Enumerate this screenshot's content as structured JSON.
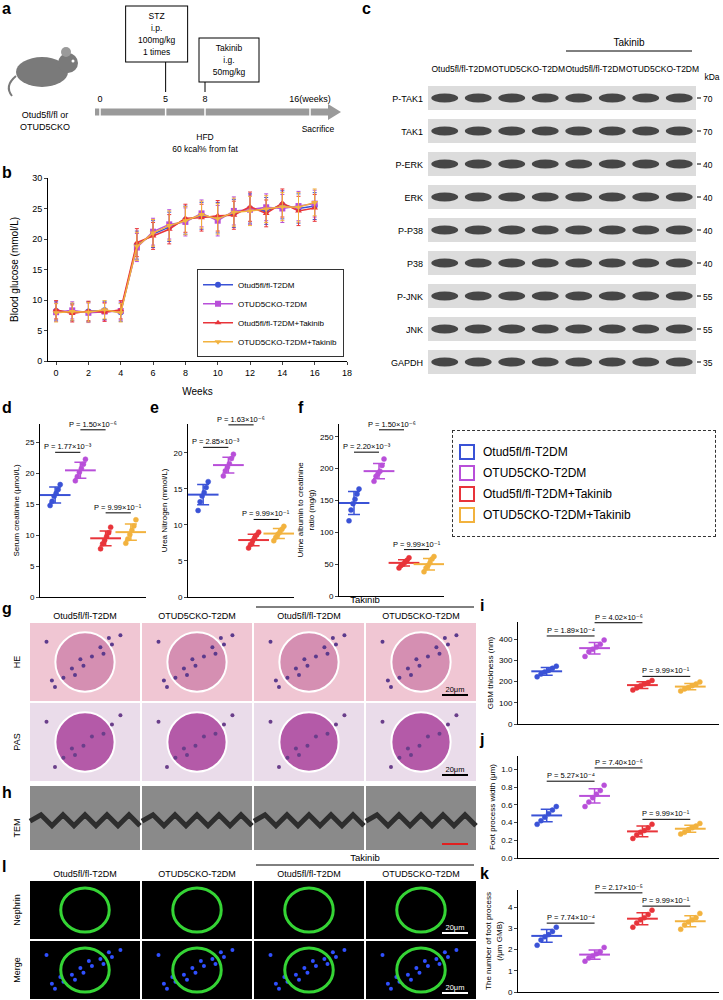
{
  "chart_data": [
    {
      "panel": "b",
      "type": "line",
      "x_label": "Weeks",
      "y_label": "Blood glucose (mmol/L)",
      "x": [
        0,
        1,
        2,
        3,
        4,
        5,
        6,
        7,
        8,
        9,
        10,
        11,
        12,
        13,
        14,
        15,
        16
      ],
      "xlim": [
        -0.5,
        18
      ],
      "xticks": [
        0,
        2,
        4,
        6,
        8,
        10,
        12,
        14,
        16,
        18
      ],
      "ylim": [
        0,
        30
      ],
      "yticks": [
        0,
        5,
        10,
        15,
        20,
        25,
        30
      ],
      "legend": "lower right",
      "series": [
        {
          "name": "Otud5fl/fl-T2DM",
          "color": "#3a52d6",
          "marker": "circle",
          "values": [
            8.2,
            8.0,
            8.1,
            8.3,
            8.0,
            19.0,
            20.8,
            22.0,
            23.1,
            23.8,
            23.5,
            24.2,
            25.0,
            24.6,
            25.6,
            25.0,
            25.4
          ],
          "errors": [
            1.5,
            1.4,
            1.6,
            1.5,
            1.5,
            2.3,
            2.2,
            2.4,
            2.3,
            2.2,
            2.5,
            2.3,
            2.4,
            2.2,
            2.3,
            2.4,
            2.2
          ]
        },
        {
          "name": "OTUD5CKO-T2DM",
          "color": "#b84fd9",
          "marker": "square",
          "values": [
            8.0,
            8.3,
            7.9,
            8.1,
            8.2,
            18.6,
            21.2,
            22.4,
            22.8,
            24.2,
            23.0,
            24.6,
            24.8,
            25.2,
            25.0,
            25.4,
            25.8
          ],
          "errors": [
            1.5,
            1.4,
            1.6,
            1.5,
            1.5,
            2.3,
            2.2,
            2.4,
            2.3,
            2.2,
            2.5,
            2.3,
            2.4,
            2.2,
            2.3,
            2.4,
            2.2
          ]
        },
        {
          "name": "Otud5fl/fl-T2DM+Takinib",
          "color": "#e8343a",
          "marker": "triangle-up",
          "values": [
            8.4,
            7.8,
            8.2,
            8.0,
            8.4,
            19.4,
            20.5,
            21.6,
            23.4,
            23.5,
            23.8,
            23.9,
            25.3,
            24.2,
            25.9,
            24.6,
            25.1
          ],
          "errors": [
            1.5,
            1.4,
            1.6,
            1.5,
            1.5,
            2.3,
            2.2,
            2.4,
            2.3,
            2.2,
            2.5,
            2.3,
            2.4,
            2.2,
            2.3,
            2.4,
            2.2
          ]
        },
        {
          "name": "OTUD5CKO-T2DM+Takinib",
          "color": "#f2b23e",
          "marker": "triangle-down",
          "values": [
            7.9,
            8.1,
            8.0,
            8.4,
            7.9,
            18.8,
            21.0,
            22.2,
            23.0,
            24.0,
            23.3,
            24.4,
            24.6,
            24.9,
            25.3,
            25.2,
            26.0
          ],
          "errors": [
            1.5,
            1.4,
            1.6,
            1.5,
            1.5,
            2.3,
            2.2,
            2.4,
            2.3,
            2.2,
            2.5,
            2.3,
            2.4,
            2.2,
            2.3,
            2.4,
            2.2
          ]
        }
      ]
    },
    {
      "panel": "d",
      "type": "dotplot",
      "y_label": [
        "Serum creatinine (μmol/L)"
      ],
      "ylim": [
        0,
        28
      ],
      "yticks": [
        0,
        5,
        10,
        15,
        20,
        25
      ],
      "tick_labels": "y",
      "series": [
        {
          "name": "Otud5fl/fl-T2DM",
          "color": "#3a52d6",
          "values": [
            14.8,
            15.5,
            16.3,
            16.8,
            17.4,
            18.2
          ],
          "mean": 16.5,
          "sd": 1.3
        },
        {
          "name": "OTUD5CKO-T2DM",
          "color": "#b84fd9",
          "values": [
            18.8,
            19.5,
            20.2,
            20.8,
            21.5,
            22.3
          ],
          "mean": 20.5,
          "sd": 1.3
        },
        {
          "name": "Otud5fl/fl-T2DM+Takinib",
          "color": "#e8343a",
          "values": [
            7.8,
            8.6,
            9.2,
            9.8,
            10.4,
            11.3
          ],
          "mean": 9.5,
          "sd": 1.2
        },
        {
          "name": "OTUD5CKO-T2DM+Takinib",
          "color": "#f2b23e",
          "values": [
            8.7,
            9.4,
            10.1,
            10.8,
            11.5,
            12.5
          ],
          "mean": 10.5,
          "sd": 1.3
        }
      ],
      "comparisons": [
        {
          "groups": [
            0,
            1
          ],
          "label": "P = 1.77×10⁻³"
        },
        {
          "groups": [
            2,
            3
          ],
          "label": "P = 9.99×10⁻¹"
        },
        {
          "groups": [
            1,
            2
          ],
          "label": "P = 1.50×10⁻⁶"
        }
      ]
    },
    {
      "panel": "e",
      "type": "dotplot",
      "y_label": [
        "Urea Nitrogen (mmol/L)"
      ],
      "ylim": [
        0,
        24
      ],
      "yticks": [
        0,
        5,
        10,
        15,
        20
      ],
      "tick_labels": "y",
      "series": [
        {
          "name": "Otud5fl/fl-T2DM",
          "color": "#3a52d6",
          "values": [
            12.0,
            13.2,
            14.0,
            14.5,
            15.2,
            16.0
          ],
          "mean": 14.2,
          "sd": 1.4
        },
        {
          "name": "OTUD5CKO-T2DM",
          "color": "#b84fd9",
          "values": [
            16.8,
            17.5,
            18.0,
            18.5,
            19.2,
            19.8
          ],
          "mean": 18.3,
          "sd": 1.1
        },
        {
          "name": "Otud5fl/fl-T2DM+Takinib",
          "color": "#e8343a",
          "values": [
            6.8,
            7.3,
            7.8,
            8.2,
            8.6,
            9.0
          ],
          "mean": 7.9,
          "sd": 0.8
        },
        {
          "name": "OTUD5CKO-T2DM+Takinib",
          "color": "#f2b23e",
          "values": [
            7.8,
            8.3,
            8.7,
            9.0,
            9.4,
            9.8
          ],
          "mean": 8.8,
          "sd": 0.7
        }
      ],
      "comparisons": [
        {
          "groups": [
            0,
            1
          ],
          "label": "P = 2.85×10⁻³"
        },
        {
          "groups": [
            2,
            3
          ],
          "label": "P = 9.99×10⁻¹"
        },
        {
          "groups": [
            1,
            2
          ],
          "label": "P = 1.63×10⁻⁶"
        }
      ]
    },
    {
      "panel": "f",
      "type": "dotplot",
      "y_label": [
        "Urine albumin to creatinine",
        "ratio (mg/g)"
      ],
      "ylim": [
        0,
        270
      ],
      "yticks": [
        0,
        50,
        100,
        150,
        200,
        250
      ],
      "tick_labels": "y",
      "legend": "right",
      "series": [
        {
          "name": "Otud5fl/fl-T2DM",
          "color": "#3a52d6",
          "values": [
            118,
            135,
            145,
            152,
            160,
            168
          ],
          "mean": 146,
          "sd": 18
        },
        {
          "name": "OTUD5CKO-T2DM",
          "color": "#b84fd9",
          "values": [
            180,
            188,
            192,
            196,
            205,
            215
          ],
          "mean": 196,
          "sd": 12
        },
        {
          "name": "Otud5fl/fl-T2DM+Takinib",
          "color": "#e8343a",
          "values": [
            44,
            48,
            50,
            53,
            56,
            60
          ],
          "mean": 52,
          "sd": 5
        },
        {
          "name": "OTUD5CKO-T2DM+Takinib",
          "color": "#f2b23e",
          "values": [
            38,
            44,
            48,
            52,
            58,
            62
          ],
          "mean": 50,
          "sd": 9
        }
      ],
      "comparisons": [
        {
          "groups": [
            0,
            1
          ],
          "label": "P = 2.20×10⁻³"
        },
        {
          "groups": [
            2,
            3
          ],
          "label": "P = 9.99×10⁻¹"
        },
        {
          "groups": [
            1,
            2
          ],
          "label": "P = 1.50×10⁻⁶"
        }
      ]
    },
    {
      "panel": "i",
      "type": "dotplot",
      "y_label": [
        "GBM thickness (nm)"
      ],
      "ylim": [
        0,
        480
      ],
      "yticks": [
        0,
        100,
        200,
        300,
        400
      ],
      "tick_labels": "y",
      "series": [
        {
          "name": "Otud5fl/fl-T2DM",
          "color": "#3a52d6",
          "values": [
            222,
            235,
            245,
            252,
            262,
            272
          ],
          "mean": 248,
          "sd": 18
        },
        {
          "name": "OTUD5CKO-T2DM",
          "color": "#b84fd9",
          "values": [
            318,
            340,
            352,
            362,
            375,
            395
          ],
          "mean": 357,
          "sd": 27
        },
        {
          "name": "Otud5fl/fl-T2DM+Takinib",
          "color": "#e8343a",
          "values": [
            160,
            170,
            180,
            188,
            195,
            205
          ],
          "mean": 183,
          "sd": 16
        },
        {
          "name": "OTUD5CKO-T2DM+Takinib",
          "color": "#f2b23e",
          "values": [
            155,
            165,
            172,
            180,
            188,
            198
          ],
          "mean": 176,
          "sd": 15
        }
      ],
      "comparisons": [
        {
          "groups": [
            0,
            1
          ],
          "label": "P = 1.89×10⁻⁴"
        },
        {
          "groups": [
            2,
            3
          ],
          "label": "P = 9.99×10⁻¹"
        },
        {
          "groups": [
            1,
            2
          ],
          "label": "P = 4.02×10⁻⁶"
        }
      ]
    },
    {
      "panel": "j",
      "type": "dotplot",
      "y_label": [
        "Foot process width (μm)"
      ],
      "ylim": [
        0,
        1.15
      ],
      "yticks": [
        {
          "value": 0,
          "label": "0.0"
        },
        0.2,
        0.4,
        0.6,
        0.8,
        {
          "value": 1,
          "label": "1.0"
        }
      ],
      "tick_labels": "y",
      "series": [
        {
          "name": "Otud5fl/fl-T2DM",
          "color": "#3a52d6",
          "values": [
            0.38,
            0.42,
            0.46,
            0.5,
            0.54,
            0.58
          ],
          "mean": 0.48,
          "sd": 0.07
        },
        {
          "name": "OTUD5CKO-T2DM",
          "color": "#b84fd9",
          "values": [
            0.58,
            0.63,
            0.68,
            0.72,
            0.76,
            0.82
          ],
          "mean": 0.7,
          "sd": 0.08
        },
        {
          "name": "Otud5fl/fl-T2DM+Takinib",
          "color": "#e8343a",
          "values": [
            0.22,
            0.26,
            0.29,
            0.31,
            0.34,
            0.38
          ],
          "mean": 0.3,
          "sd": 0.06
        },
        {
          "name": "OTUD5CKO-T2DM+Takinib",
          "color": "#f2b23e",
          "values": [
            0.27,
            0.29,
            0.32,
            0.34,
            0.36,
            0.39
          ],
          "mean": 0.33,
          "sd": 0.04
        }
      ],
      "comparisons": [
        {
          "groups": [
            0,
            1
          ],
          "label": "P = 5.27×10⁻⁴"
        },
        {
          "groups": [
            2,
            3
          ],
          "label": "P = 9.99×10⁻¹"
        },
        {
          "groups": [
            1,
            2
          ],
          "label": "P = 7.40×10⁻⁶"
        }
      ]
    },
    {
      "panel": "k",
      "type": "dotplot",
      "y_label": [
        "The number of foot process",
        "(/μm GMB)"
      ],
      "ylim": [
        0,
        4.8
      ],
      "yticks": [
        0,
        1,
        2,
        3,
        4
      ],
      "tick_labels": "y",
      "series": [
        {
          "name": "Otud5fl/fl-T2DM",
          "color": "#3a52d6",
          "values": [
            2.2,
            2.45,
            2.6,
            2.7,
            2.85,
            3.05
          ],
          "mean": 2.64,
          "sd": 0.3
        },
        {
          "name": "OTUD5CKO-T2DM",
          "color": "#b84fd9",
          "values": [
            1.45,
            1.6,
            1.7,
            1.8,
            1.9,
            2.1
          ],
          "mean": 1.76,
          "sd": 0.22
        },
        {
          "name": "Otud5fl/fl-T2DM+Takinib",
          "color": "#e8343a",
          "values": [
            3.05,
            3.25,
            3.4,
            3.5,
            3.65,
            3.85
          ],
          "mean": 3.45,
          "sd": 0.28
        },
        {
          "name": "OTUD5CKO-T2DM+Takinib",
          "color": "#f2b23e",
          "values": [
            2.95,
            3.15,
            3.3,
            3.4,
            3.5,
            3.7
          ],
          "mean": 3.33,
          "sd": 0.26
        }
      ],
      "comparisons": [
        {
          "groups": [
            0,
            1
          ],
          "label": "P = 7.74×10⁻⁴"
        },
        {
          "groups": [
            2,
            3
          ],
          "label": "P = 9.99×10⁻¹"
        },
        {
          "groups": [
            1,
            2
          ],
          "label": "P = 2.17×10⁻⁵"
        }
      ]
    }
  ],
  "figure": {
    "schematic": {
      "panel": "a",
      "mouse_label": [
        "Otud5fl/fl or",
        "OTUD5CKO"
      ],
      "stz": {
        "lines": [
          "STZ",
          "i.p.",
          "100mg/kg",
          "1 times"
        ],
        "week": 5
      },
      "takinib": {
        "lines": [
          "Takinib",
          "i.g.",
          "50mg/kg"
        ],
        "week": 8
      },
      "timeline": {
        "ticks": [
          0,
          5,
          8,
          {
            "value": 16,
            "label": "16(weeks)"
          }
        ]
      },
      "diet": {
        "lines": [
          "HFD",
          "60 kcal% from fat"
        ]
      },
      "end_label": "Sacrifice"
    },
    "blot": {
      "panel": "c",
      "groups": [
        "Otud5fl/fl-T2DM",
        "OTUD5CKO-T2DM",
        "Otud5fl/fl-T2DM",
        "OTUD5CKO-T2DM"
      ],
      "treatment": "Takinib",
      "treated_groups": [
        2,
        3
      ],
      "lanes_per_group": 2,
      "unit": "kDa",
      "rows": [
        {
          "label": "P-TAK1",
          "kDa": 70
        },
        {
          "label": "TAK1",
          "kDa": 70
        },
        {
          "label": "P-ERK",
          "kDa": 40
        },
        {
          "label": "ERK",
          "kDa": 40
        },
        {
          "label": "P-P38",
          "kDa": 40
        },
        {
          "label": "P38",
          "kDa": 40
        },
        {
          "label": "P-JNK",
          "kDa": 55
        },
        {
          "label": "JNK",
          "kDa": 55
        },
        {
          "label": "GAPDH",
          "kDa": 35
        }
      ]
    },
    "histology": {
      "panel": "g",
      "groups": [
        "Otud5fl/fl-T2DM",
        "OTUD5CKO-T2DM",
        "Otud5fl/fl-T2DM",
        "OTUD5CKO-T2DM"
      ],
      "treatment": "Takinib",
      "treated_groups": [
        2,
        3
      ],
      "rows": [
        "HE",
        "PAS"
      ],
      "scale_bar": "20μm"
    },
    "tem": {
      "panel": "h",
      "label": "TEM"
    },
    "immunofluorescence": {
      "panel": "l",
      "groups": [
        "Otud5fl/fl-T2DM",
        "OTUD5CKO-T2DM",
        "Otud5fl/fl-T2DM",
        "OTUD5CKO-T2DM"
      ],
      "treatment": "Takinib",
      "treated_groups": [
        2,
        3
      ],
      "rows": [
        "Nephrin",
        "Merge"
      ],
      "scale_bar": "20μm"
    }
  }
}
